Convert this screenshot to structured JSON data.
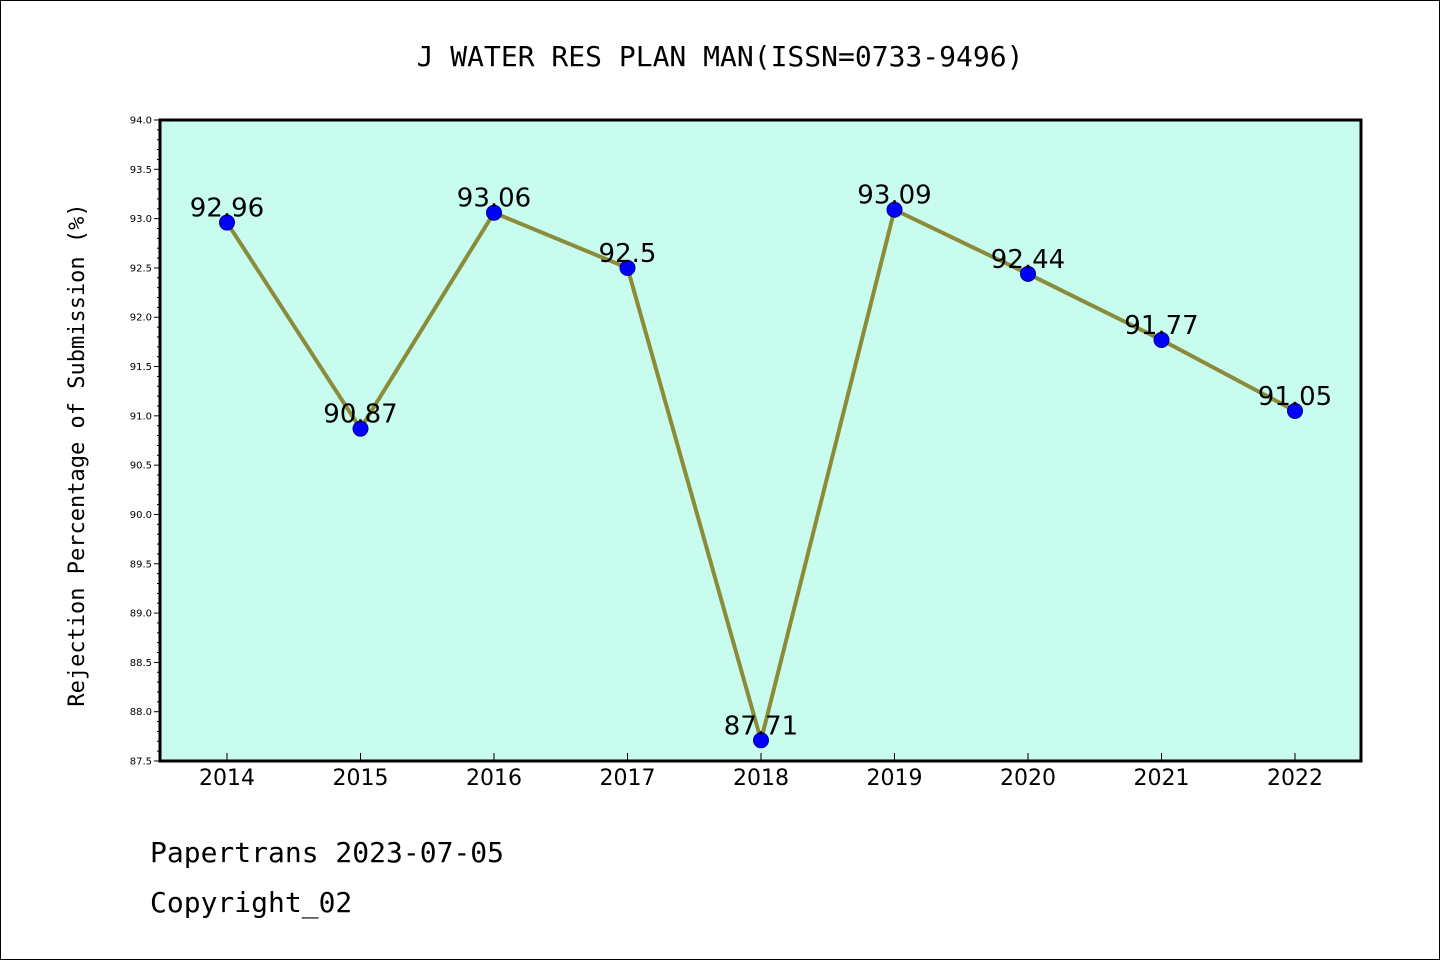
{
  "chart_data": {
    "type": "line",
    "title": "J WATER RES PLAN MAN(ISSN=0733-9496)",
    "xlabel": "",
    "ylabel": "Rejection Percentage of Submission (%)",
    "categories": [
      "2014",
      "2015",
      "2016",
      "2017",
      "2018",
      "2019",
      "2020",
      "2021",
      "2022"
    ],
    "series": [
      {
        "values": [
          92.96,
          90.87,
          93.06,
          92.5,
          87.71,
          93.09,
          92.44,
          91.77,
          91.05
        ],
        "labels": [
          "92.96",
          "90.87",
          "93.06",
          "92.5",
          "87.71",
          "93.09",
          "92.44",
          "91.77",
          "91.05"
        ]
      }
    ],
    "ylim": [
      87.5,
      94.0
    ],
    "yticks": [
      "87.5",
      "88.0",
      "88.5",
      "89.0",
      "89.5",
      "90.0",
      "90.5",
      "91.0",
      "91.5",
      "92.0",
      "92.5",
      "93.0",
      "93.5",
      "94.0"
    ],
    "grid": false,
    "colors": {
      "plot_background": "#c8fcee",
      "line": "#8b8b3a",
      "marker": "#0000ff"
    }
  },
  "footer": {
    "line1": "Papertrans 2023-07-05",
    "line2": "Copyright_02"
  }
}
